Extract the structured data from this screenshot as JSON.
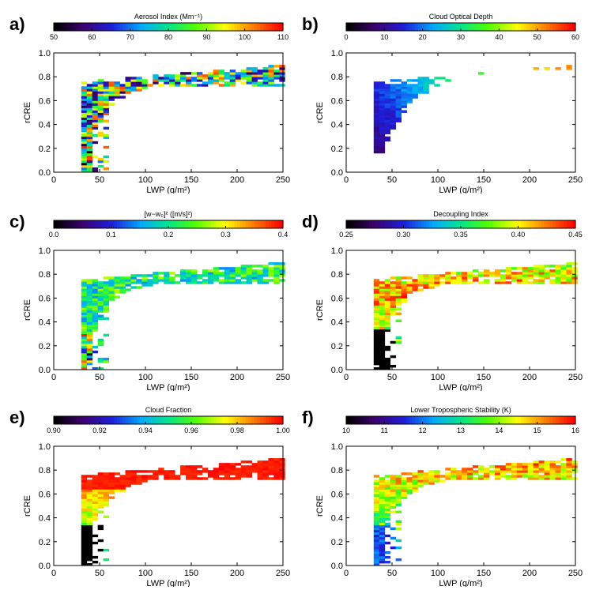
{
  "chart_data": [
    {
      "type": "heatmap",
      "panel_label": "a)",
      "colorbar_title": "Aerosol Index (Mm⁻¹)",
      "color_range": [
        50,
        110
      ],
      "colorbar_ticks": [
        "50",
        "60",
        "70",
        "80",
        "90",
        "100",
        "110"
      ],
      "xlabel": "LWP (g/m²)",
      "ylabel": "rCRE",
      "xlim": [
        0,
        250
      ],
      "ylim": [
        0.0,
        1.0
      ],
      "xticks": [
        "0",
        "50",
        "100",
        "150",
        "200",
        "250"
      ],
      "yticks": [
        "0.0",
        "0.2",
        "0.4",
        "0.6",
        "0.8",
        "1.0"
      ],
      "pattern": "mixed",
      "lowpatch": "mixed",
      "speckle": true
    },
    {
      "type": "heatmap",
      "panel_label": "b)",
      "colorbar_title": "Cloud Optical Depth",
      "color_range": [
        0,
        60
      ],
      "colorbar_ticks": [
        "0",
        "10",
        "20",
        "30",
        "40",
        "50",
        "60"
      ],
      "xlabel": "LWP (g/m²)",
      "ylabel": "rCRE",
      "xlim": [
        0,
        250
      ],
      "ylim": [
        0.0,
        1.0
      ],
      "xticks": [
        "0",
        "50",
        "100",
        "150",
        "200",
        "250"
      ],
      "yticks": [
        "0.0",
        "0.2",
        "0.4",
        "0.6",
        "0.8",
        "1.0"
      ],
      "pattern": "cod",
      "lowpatch": "none",
      "speckle": false
    },
    {
      "type": "heatmap",
      "panel_label": "c)",
      "colorbar_title": "[w−w₀]² ([m/s]²)",
      "color_range": [
        0.0,
        0.4
      ],
      "colorbar_ticks": [
        "0.0",
        "0.1",
        "0.2",
        "0.3",
        "0.4"
      ],
      "xlabel": "LWP (g/m²)",
      "ylabel": "rCRE",
      "xlim": [
        0,
        250
      ],
      "ylim": [
        0.0,
        1.0
      ],
      "xticks": [
        "0",
        "50",
        "100",
        "150",
        "200",
        "250"
      ],
      "yticks": [
        "0.0",
        "0.2",
        "0.4",
        "0.6",
        "0.8",
        "1.0"
      ],
      "pattern": "variance",
      "lowpatch": "mixed",
      "speckle": false
    },
    {
      "type": "heatmap",
      "panel_label": "d)",
      "colorbar_title": "Decoupling Index",
      "color_range": [
        0.25,
        0.45
      ],
      "colorbar_ticks": [
        "0.25",
        "0.30",
        "0.35",
        "0.40",
        "0.45"
      ],
      "xlabel": "LWP (g/m²)",
      "ylabel": "rCRE",
      "xlim": [
        0,
        250
      ],
      "ylim": [
        0.0,
        1.0
      ],
      "xticks": [
        "0",
        "50",
        "100",
        "150",
        "200",
        "250"
      ],
      "yticks": [
        "0.0",
        "0.2",
        "0.4",
        "0.6",
        "0.8",
        "1.0"
      ],
      "pattern": "decoupling",
      "lowpatch": "black",
      "speckle": false
    },
    {
      "type": "heatmap",
      "panel_label": "e)",
      "colorbar_title": "Cloud Fraction",
      "color_range": [
        0.9,
        1.0
      ],
      "colorbar_ticks": [
        "0.90",
        "0.92",
        "0.94",
        "0.96",
        "0.98",
        "1.00"
      ],
      "xlabel": "LWP (g/m²)",
      "ylabel": "rCRE",
      "xlim": [
        0,
        250
      ],
      "ylim": [
        0.0,
        1.0
      ],
      "xticks": [
        "0",
        "50",
        "100",
        "150",
        "200",
        "250"
      ],
      "yticks": [
        "0.0",
        "0.2",
        "0.4",
        "0.6",
        "0.8",
        "1.0"
      ],
      "pattern": "cloudfrac",
      "lowpatch": "black",
      "speckle": false
    },
    {
      "type": "heatmap",
      "panel_label": "f)",
      "colorbar_title": "Lower Tropospheric Stability (K)",
      "color_range": [
        10,
        16
      ],
      "colorbar_ticks": [
        "10",
        "11",
        "12",
        "13",
        "14",
        "15",
        "16"
      ],
      "xlabel": "LWP (g/m²)",
      "ylabel": "rCRE",
      "xlim": [
        0,
        250
      ],
      "ylim": [
        0.0,
        1.0
      ],
      "xticks": [
        "0",
        "50",
        "100",
        "150",
        "200",
        "250"
      ],
      "yticks": [
        "0.0",
        "0.2",
        "0.4",
        "0.6",
        "0.8",
        "1.0"
      ],
      "pattern": "lts",
      "lowpatch": "blue",
      "speckle": false
    }
  ]
}
